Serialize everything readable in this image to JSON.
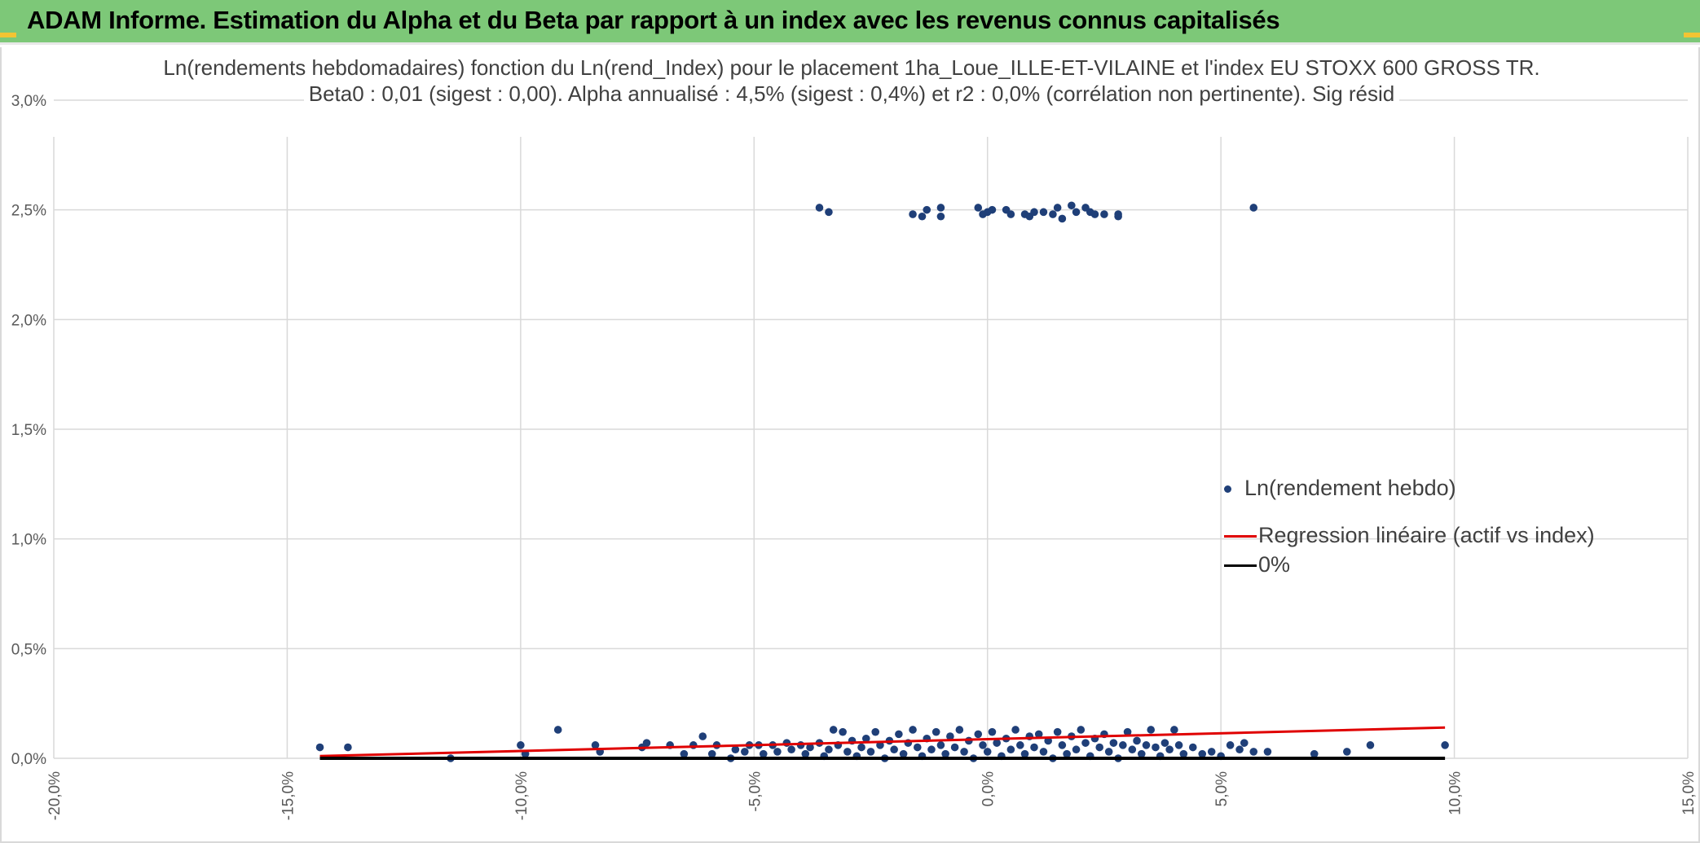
{
  "header": {
    "title": "ADAM Informe. Estimation du Alpha et du Beta par rapport à un index avec les revenus connus capitalisés"
  },
  "colors": {
    "header_bg": "#7dc878",
    "points": "#1f3f78",
    "regression": "#e00000",
    "zero_line": "#000000",
    "grid": "#d9d9d9"
  },
  "chart_data": {
    "type": "scatter",
    "title_line1": "Ln(rendements hebdomadaires) fonction du Ln(rend_Index) pour le placement 1ha_Loue_ILLE-ET-VILAINE et l'index EU STOXX 600 GROSS TR.",
    "title_line2": "Beta0 : 0,01 (sigest : 0,00). Alpha annualisé : 4,5% (sigest : 0,4%) et r2 : 0,0% (corrélation non pertinente). Sig résid",
    "xlabel": "",
    "ylabel": "",
    "xlim": [
      -0.2,
      0.15
    ],
    "ylim": [
      0.0,
      0.03
    ],
    "x_ticks": [
      -0.2,
      -0.15,
      -0.1,
      -0.05,
      0.0,
      0.05,
      0.1,
      0.15
    ],
    "x_tick_labels": [
      "-20,0%",
      "-15,0%",
      "-10,0%",
      "-5,0%",
      "0,0%",
      "5,0%",
      "10,0%",
      "15,0%"
    ],
    "y_ticks": [
      0.0,
      0.005,
      0.01,
      0.015,
      0.02,
      0.025,
      0.03
    ],
    "y_tick_labels": [
      "0,0%",
      "0,5%",
      "1,0%",
      "1,5%",
      "2,0%",
      "2,5%",
      "3,0%"
    ],
    "grid": true,
    "legend_position": "bottom-right",
    "series": [
      {
        "name": "Ln(rendement hebdo)",
        "kind": "scatter",
        "points": [
          [
            -0.143,
            0.0005
          ],
          [
            -0.137,
            0.0005
          ],
          [
            -0.115,
            0.0
          ],
          [
            -0.1,
            0.0006
          ],
          [
            -0.099,
            0.0002
          ],
          [
            -0.092,
            0.0013
          ],
          [
            -0.084,
            0.0006
          ],
          [
            -0.083,
            0.0003
          ],
          [
            -0.074,
            0.0005
          ],
          [
            -0.073,
            0.0007
          ],
          [
            -0.068,
            0.0006
          ],
          [
            -0.065,
            0.0002
          ],
          [
            -0.063,
            0.0006
          ],
          [
            -0.061,
            0.001
          ],
          [
            -0.059,
            0.0002
          ],
          [
            -0.058,
            0.0006
          ],
          [
            -0.055,
            0.0
          ],
          [
            -0.054,
            0.0004
          ],
          [
            -0.052,
            0.0003
          ],
          [
            -0.051,
            0.0006
          ],
          [
            -0.049,
            0.0006
          ],
          [
            -0.048,
            0.0002
          ],
          [
            -0.046,
            0.0006
          ],
          [
            -0.045,
            0.0003
          ],
          [
            -0.043,
            0.0007
          ],
          [
            -0.042,
            0.0004
          ],
          [
            -0.04,
            0.0006
          ],
          [
            -0.039,
            0.0002
          ],
          [
            -0.038,
            0.0005
          ],
          [
            -0.036,
            0.0007
          ],
          [
            -0.035,
            0.0001
          ],
          [
            -0.034,
            0.0004
          ],
          [
            -0.033,
            0.0013
          ],
          [
            -0.032,
            0.0006
          ],
          [
            -0.031,
            0.0012
          ],
          [
            -0.03,
            0.0003
          ],
          [
            -0.029,
            0.0008
          ],
          [
            -0.028,
            0.0001
          ],
          [
            -0.027,
            0.0005
          ],
          [
            -0.026,
            0.0009
          ],
          [
            -0.025,
            0.0003
          ],
          [
            -0.024,
            0.0012
          ],
          [
            -0.023,
            0.0006
          ],
          [
            -0.022,
            0.0
          ],
          [
            -0.021,
            0.0008
          ],
          [
            -0.02,
            0.0004
          ],
          [
            -0.019,
            0.0011
          ],
          [
            -0.018,
            0.0002
          ],
          [
            -0.017,
            0.0007
          ],
          [
            -0.016,
            0.0013
          ],
          [
            -0.015,
            0.0005
          ],
          [
            -0.014,
            0.0001
          ],
          [
            -0.013,
            0.0009
          ],
          [
            -0.012,
            0.0004
          ],
          [
            -0.011,
            0.0012
          ],
          [
            -0.01,
            0.0006
          ],
          [
            -0.009,
            0.0002
          ],
          [
            -0.008,
            0.001
          ],
          [
            -0.007,
            0.0005
          ],
          [
            -0.006,
            0.0013
          ],
          [
            -0.005,
            0.0003
          ],
          [
            -0.004,
            0.0008
          ],
          [
            -0.003,
            0.0
          ],
          [
            -0.002,
            0.0011
          ],
          [
            -0.001,
            0.0006
          ],
          [
            0.0,
            0.0003
          ],
          [
            0.001,
            0.0012
          ],
          [
            0.002,
            0.0007
          ],
          [
            0.003,
            0.0001
          ],
          [
            0.004,
            0.0009
          ],
          [
            0.005,
            0.0004
          ],
          [
            0.006,
            0.0013
          ],
          [
            0.007,
            0.0006
          ],
          [
            0.008,
            0.0002
          ],
          [
            0.009,
            0.001
          ],
          [
            0.01,
            0.0005
          ],
          [
            0.011,
            0.0011
          ],
          [
            0.012,
            0.0003
          ],
          [
            0.013,
            0.0008
          ],
          [
            0.014,
            0.0
          ],
          [
            0.015,
            0.0012
          ],
          [
            0.016,
            0.0006
          ],
          [
            0.017,
            0.0002
          ],
          [
            0.018,
            0.001
          ],
          [
            0.019,
            0.0004
          ],
          [
            0.02,
            0.0013
          ],
          [
            0.021,
            0.0007
          ],
          [
            0.022,
            0.0001
          ],
          [
            0.023,
            0.0009
          ],
          [
            0.024,
            0.0005
          ],
          [
            0.025,
            0.0011
          ],
          [
            0.026,
            0.0003
          ],
          [
            0.027,
            0.0007
          ],
          [
            0.028,
            0.0
          ],
          [
            0.029,
            0.0006
          ],
          [
            0.03,
            0.0012
          ],
          [
            0.031,
            0.0004
          ],
          [
            0.032,
            0.0008
          ],
          [
            0.033,
            0.0002
          ],
          [
            0.034,
            0.0006
          ],
          [
            0.035,
            0.0013
          ],
          [
            0.036,
            0.0005
          ],
          [
            0.037,
            0.0001
          ],
          [
            0.038,
            0.0007
          ],
          [
            0.039,
            0.0004
          ],
          [
            0.04,
            0.0013
          ],
          [
            0.041,
            0.0006
          ],
          [
            0.042,
            0.0002
          ],
          [
            0.044,
            0.0005
          ],
          [
            0.046,
            0.0002
          ],
          [
            0.048,
            0.0003
          ],
          [
            0.05,
            0.0001
          ],
          [
            0.052,
            0.0006
          ],
          [
            0.054,
            0.0004
          ],
          [
            0.055,
            0.0007
          ],
          [
            0.057,
            0.0003
          ],
          [
            0.06,
            0.0003
          ],
          [
            0.07,
            0.0002
          ],
          [
            0.077,
            0.0003
          ],
          [
            0.082,
            0.0006
          ],
          [
            0.098,
            0.0006
          ],
          [
            -0.036,
            0.0251
          ],
          [
            -0.034,
            0.0249
          ],
          [
            -0.016,
            0.0248
          ],
          [
            -0.014,
            0.0247
          ],
          [
            -0.013,
            0.025
          ],
          [
            -0.01,
            0.0251
          ],
          [
            -0.01,
            0.0247
          ],
          [
            -0.002,
            0.0251
          ],
          [
            -0.001,
            0.0248
          ],
          [
            0.0,
            0.0249
          ],
          [
            0.001,
            0.025
          ],
          [
            0.004,
            0.025
          ],
          [
            0.005,
            0.0248
          ],
          [
            0.008,
            0.0248
          ],
          [
            0.009,
            0.0247
          ],
          [
            0.01,
            0.0249
          ],
          [
            0.012,
            0.0249
          ],
          [
            0.014,
            0.0248
          ],
          [
            0.015,
            0.0251
          ],
          [
            0.016,
            0.0246
          ],
          [
            0.018,
            0.0252
          ],
          [
            0.019,
            0.0249
          ],
          [
            0.021,
            0.0251
          ],
          [
            0.022,
            0.0249
          ],
          [
            0.023,
            0.0248
          ],
          [
            0.025,
            0.0248
          ],
          [
            0.028,
            0.0247
          ],
          [
            0.028,
            0.0248
          ],
          [
            0.057,
            0.0251
          ]
        ]
      },
      {
        "name": "Regression linéaire (actif vs index)",
        "kind": "line",
        "x": [
          -0.143,
          0.098
        ],
        "y": [
          0.0001,
          0.0014
        ]
      },
      {
        "name": "0%",
        "kind": "line",
        "x": [
          -0.143,
          0.098
        ],
        "y": [
          0.0,
          0.0
        ]
      }
    ]
  }
}
